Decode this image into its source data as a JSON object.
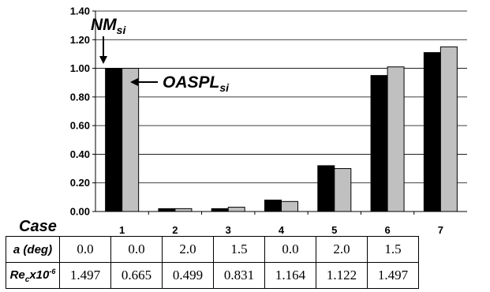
{
  "chart_data": {
    "type": "bar",
    "categories": [
      "1",
      "2",
      "3",
      "4",
      "5",
      "6",
      "7"
    ],
    "series": [
      {
        "name": "NMsi",
        "values": [
          1.0,
          0.02,
          0.02,
          0.08,
          0.32,
          0.95,
          1.11
        ]
      },
      {
        "name": "OASPLsi",
        "values": [
          1.0,
          0.02,
          0.03,
          0.07,
          0.3,
          1.01,
          1.15
        ]
      }
    ],
    "yticks": [
      "0.00",
      "0.20",
      "0.40",
      "0.60",
      "0.80",
      "1.00",
      "1.20",
      "1.40"
    ],
    "ylim": [
      0,
      1.4
    ],
    "xlabel": "Case",
    "ylabel": "",
    "grid": true,
    "colors": {
      "NMsi": "#000000",
      "OASPLsi": "#c0c0c0"
    },
    "annotations": {
      "nm_label": "NM",
      "nm_sub": "si",
      "oaspl_label": "OASPL",
      "oaspl_sub": "si"
    }
  },
  "table": {
    "rows": [
      {
        "label": "a (deg)",
        "values": [
          "0.0",
          "0.0",
          "2.0",
          "1.5",
          "0.0",
          "2.0",
          "1.5"
        ]
      },
      {
        "label_main": "Re",
        "label_sub": "c",
        "label_mid": "x10",
        "label_sup": "-6",
        "values": [
          "1.497",
          "0.665",
          "0.499",
          "0.831",
          "1.164",
          "1.122",
          "1.497"
        ]
      }
    ]
  }
}
